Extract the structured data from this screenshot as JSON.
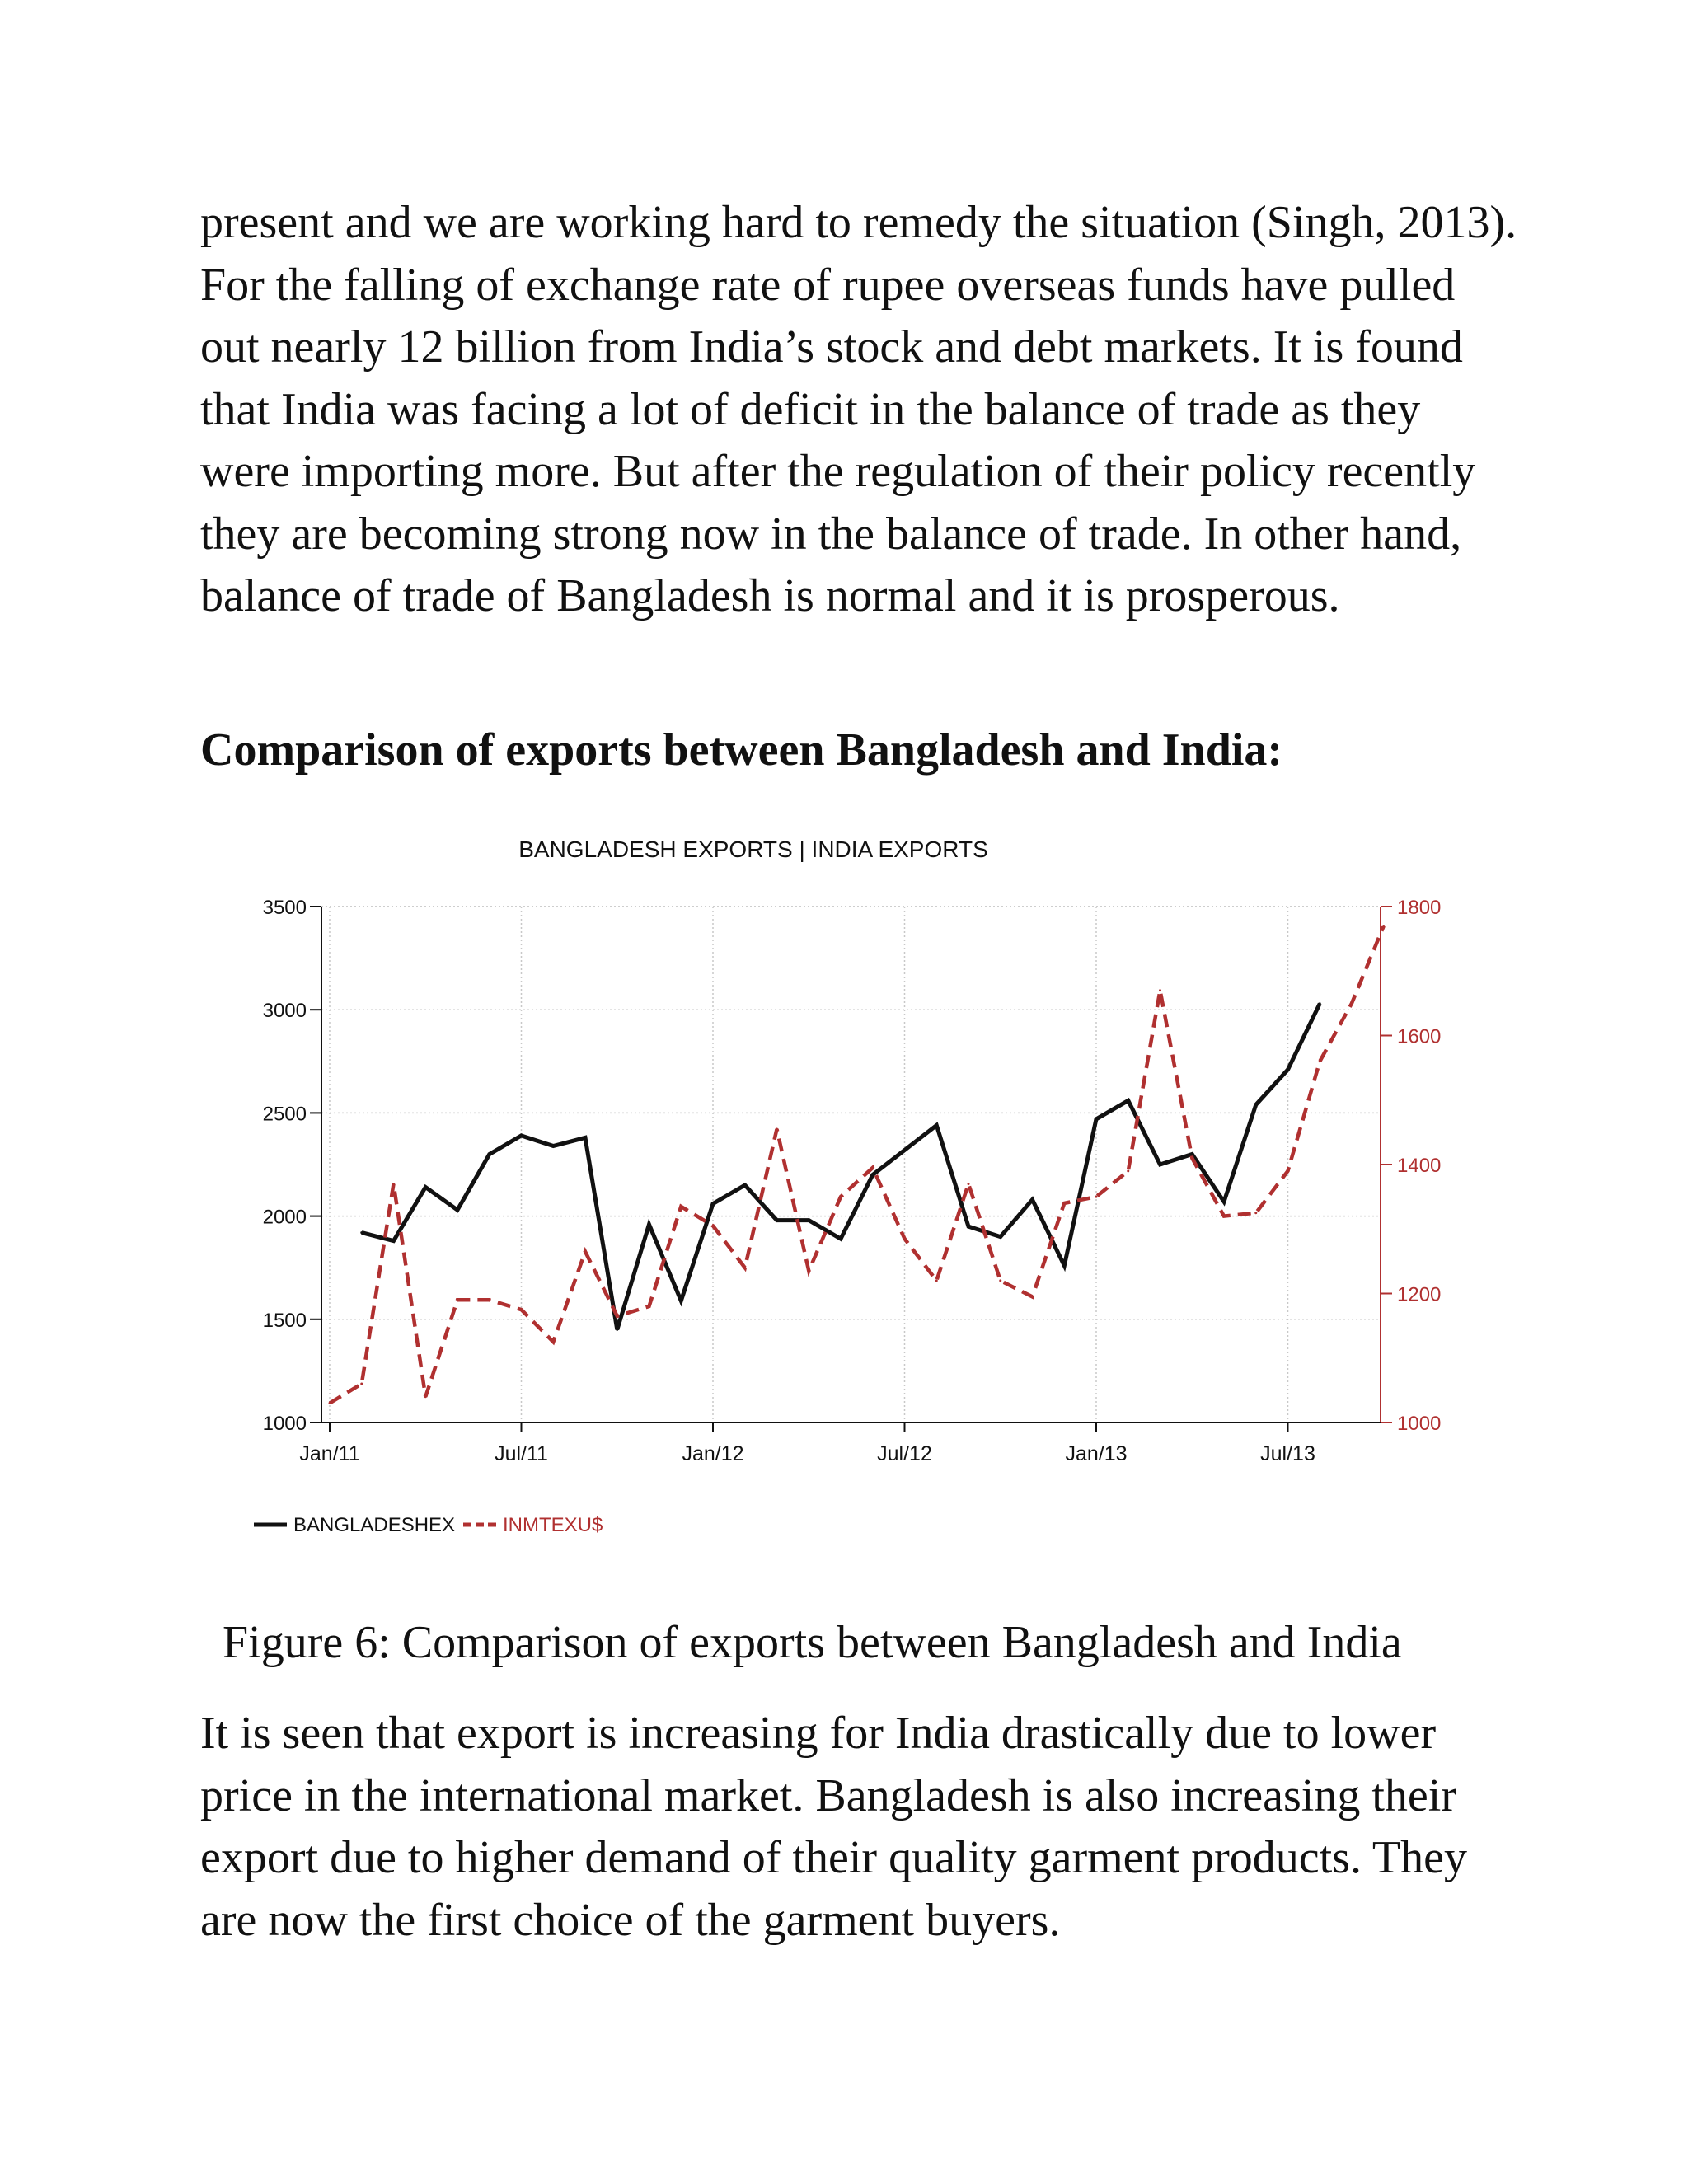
{
  "document": {
    "paragraph_1": "present and we are working hard to remedy the situation (Singh, 2013). For the falling of exchange rate of rupee overseas funds have pulled out nearly 12 billion from India’s stock and debt markets. It is found that India was facing a lot of deficit in the balance of trade as they were importing more. But after the regulation of their policy recently they are becoming strong now in the balance of trade. In other hand, balance of trade of Bangladesh is normal and it is prosperous.",
    "heading": "Comparison of exports between Bangladesh and India:",
    "caption": "Figure 6: Comparison of exports between Bangladesh and India",
    "paragraph_2": "It is seen that export is increasing for India drastically due to lower price in the international market. Bangladesh is also increasing their export due to higher demand of their quality garment products. They are now the first choice of the garment buyers."
  },
  "chart_data": {
    "type": "line",
    "title": "BANGLADESH EXPORTS | INDIA EXPORTS",
    "x": [
      "2011-01",
      "2011-02",
      "2011-03",
      "2011-04",
      "2011-05",
      "2011-06",
      "2011-07",
      "2011-08",
      "2011-09",
      "2011-10",
      "2011-11",
      "2011-12",
      "2012-01",
      "2012-02",
      "2012-03",
      "2012-04",
      "2012-05",
      "2012-06",
      "2012-07",
      "2012-08",
      "2012-09",
      "2012-10",
      "2012-11",
      "2012-12",
      "2013-01",
      "2013-02",
      "2013-03",
      "2013-04",
      "2013-05",
      "2013-06",
      "2013-07",
      "2013-08",
      "2013-09",
      "2013-10"
    ],
    "x_tick_labels": [
      "Jan/11",
      "Jul/11",
      "Jan/12",
      "Jul/12",
      "Jan/13",
      "Jul/13"
    ],
    "x_tick_positions": [
      "2011-01",
      "2011-07",
      "2012-01",
      "2012-07",
      "2013-01",
      "2013-07"
    ],
    "y_left": {
      "ylim": [
        1000,
        3500
      ],
      "ticks": [
        1000,
        1500,
        2000,
        2500,
        3000,
        3500
      ]
    },
    "y_right": {
      "ylim": [
        1000,
        1800
      ],
      "ticks": [
        1000,
        1200,
        1400,
        1600,
        1800
      ],
      "color": "#b03030"
    },
    "grid": true,
    "legend_placement": "bottom-left",
    "series": [
      {
        "name": "BANGLADESHEX",
        "axis": "left",
        "color": "#111111",
        "style": "solid",
        "values": [
          null,
          1920,
          1880,
          2140,
          2030,
          2300,
          2390,
          2340,
          2380,
          1450,
          1960,
          1590,
          2060,
          2150,
          1980,
          1980,
          1890,
          2200,
          2320,
          2440,
          1950,
          1900,
          2080,
          1760,
          2470,
          2560,
          2250,
          2300,
          2070,
          2540,
          2710,
          3030,
          null,
          null
        ]
      },
      {
        "name": "INMTEXU$",
        "axis": "right",
        "color": "#b03030",
        "style": "dashed",
        "values": [
          1030,
          1060,
          1370,
          1040,
          1190,
          1190,
          1175,
          1125,
          1265,
          1165,
          1180,
          1335,
          1305,
          1240,
          1455,
          1235,
          1350,
          1395,
          1285,
          1220,
          1370,
          1220,
          1195,
          1340,
          1350,
          1390,
          1670,
          1410,
          1320,
          1325,
          1390,
          1560,
          1650,
          1770
        ]
      }
    ]
  }
}
